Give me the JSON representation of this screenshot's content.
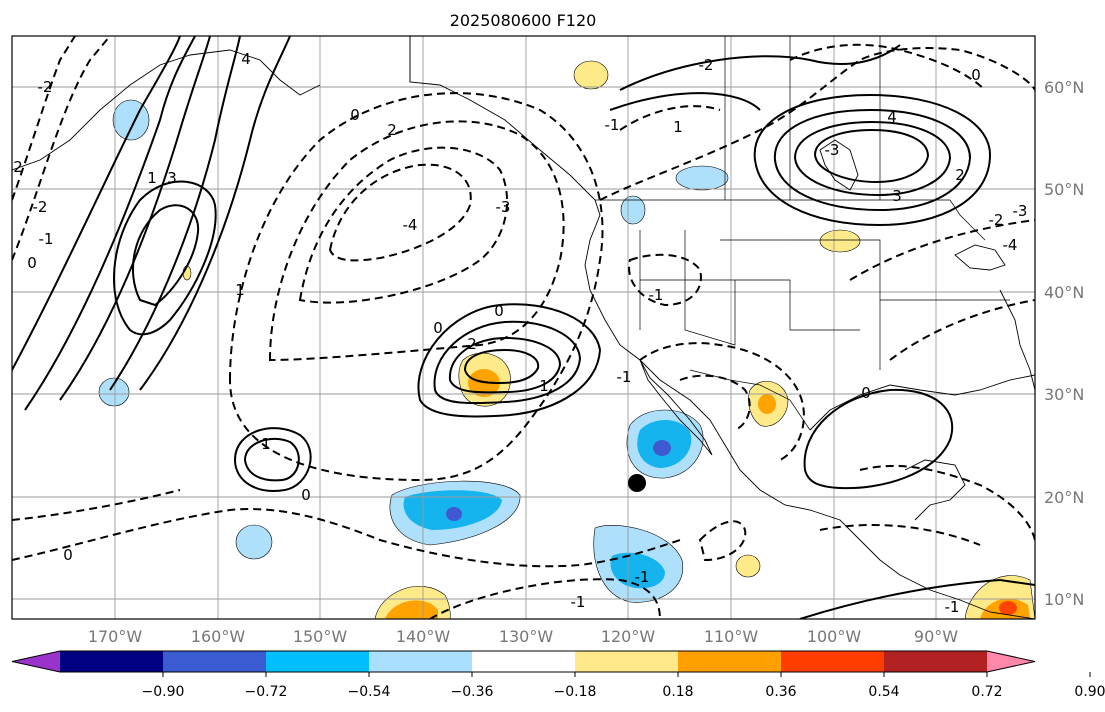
{
  "map": {
    "title": "2025080600 F120",
    "lon_labels": [
      "170°W",
      "160°W",
      "150°W",
      "140°W",
      "130°W",
      "120°W",
      "110°W",
      "100°W",
      "90°W"
    ],
    "lat_labels": [
      "60°N",
      "50°N",
      "40°N",
      "30°N",
      "20°N",
      "10°N"
    ],
    "extent": {
      "lon_min": -180,
      "lon_max": -80,
      "lat_min": 8,
      "lat_max": 65
    },
    "gridlines": true,
    "contour_labels": [
      "4",
      "2",
      "3",
      "1",
      "0",
      "-1",
      "-2",
      "-3",
      "-4",
      "0",
      "1",
      "-1",
      "2",
      "3",
      "4",
      "0",
      "1",
      "-1",
      "-2",
      "-3",
      "0",
      "-1",
      "0",
      "-2",
      "2",
      "1",
      "0",
      "-1",
      "-2",
      "-3",
      "-4",
      "0",
      "-1",
      "2",
      "1",
      "0",
      "-1"
    ],
    "storm_marker": {
      "lon": -118.5,
      "lat": 21.3
    },
    "colors": {
      "neg_strong": "#3f5ad0",
      "neg_mid": "#15b4ee",
      "neg_weak": "#aee0fb",
      "pos_weak": "#ffea8a",
      "pos_mid": "#ffa300",
      "pos_strong": "#ff4400"
    }
  },
  "colorbar": {
    "ticks": [
      "−0.90",
      "−0.72",
      "−0.54",
      "−0.36",
      "−0.18",
      "0.18",
      "0.36",
      "0.54",
      "0.72",
      "0.90"
    ],
    "colors": [
      "#9933cc",
      "#000080",
      "#3b5bd0",
      "#00bfff",
      "#aadfff",
      "#ffffff",
      "#ffe98a",
      "#ffa000",
      "#ff3d00",
      "#b22222",
      "#ff88aa"
    ]
  }
}
